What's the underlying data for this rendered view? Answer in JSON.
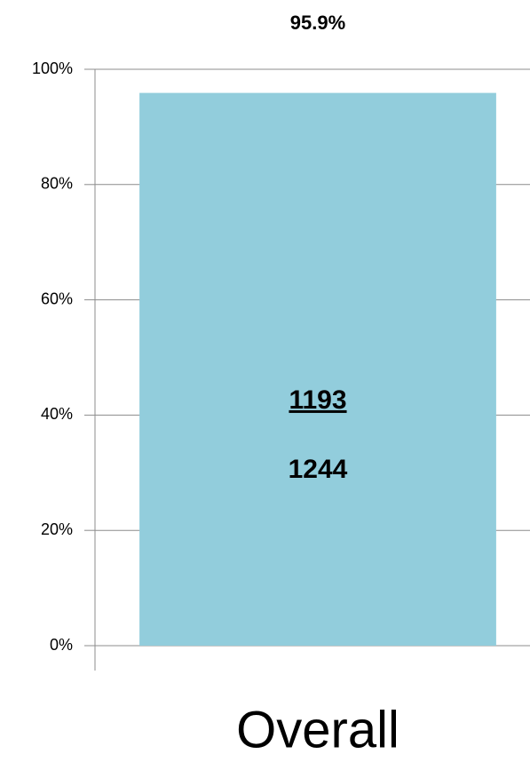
{
  "chart_data": {
    "type": "bar",
    "categories": [
      "Overall"
    ],
    "values": [
      95.9
    ],
    "value_labels": [
      "95.9%"
    ],
    "color": "#92cddc",
    "counts": {
      "numerator": 1193,
      "denominator": 1244
    },
    "ylim": [
      0,
      100
    ],
    "yticks": [
      {
        "value": 0,
        "label": "0%"
      },
      {
        "value": 20,
        "label": "20%"
      },
      {
        "value": 40,
        "label": "40%"
      },
      {
        "value": 60,
        "label": "60%"
      },
      {
        "value": 80,
        "label": "80%"
      },
      {
        "value": 100,
        "label": "100%"
      }
    ],
    "grid": true
  }
}
